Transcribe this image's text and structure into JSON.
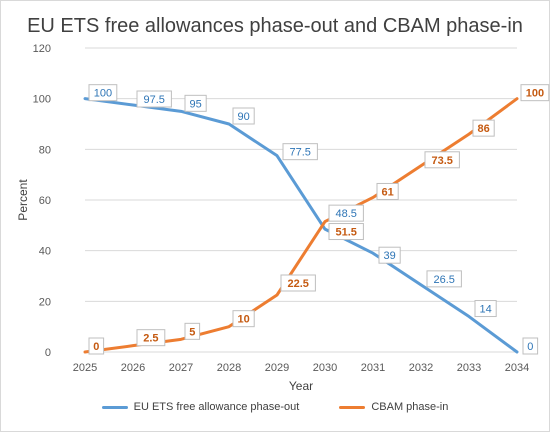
{
  "chart_data": {
    "type": "line",
    "title": "EU ETS free allowances phase-out and CBAM phase-in",
    "xlabel": "Year",
    "ylabel": "Percent",
    "x": [
      2025,
      2026,
      2027,
      2028,
      2029,
      2030,
      2031,
      2032,
      2033,
      2034
    ],
    "ylim": [
      0,
      120
    ],
    "yticks": [
      0,
      20,
      40,
      60,
      80,
      100,
      120
    ],
    "grid": true,
    "legend_position": "bottom",
    "series": [
      {
        "name": "EU ETS free allowance phase-out",
        "color": "#5B9BD5",
        "label_color": "#2E75B6",
        "values": [
          100,
          97.5,
          95,
          90,
          77.5,
          48.5,
          39,
          26.5,
          14,
          0
        ]
      },
      {
        "name": "CBAM phase-in",
        "color": "#ED7D31",
        "label_color": "#C55A11",
        "values": [
          0,
          2.5,
          5,
          10,
          22.5,
          51.5,
          61,
          73.5,
          86,
          100
        ]
      }
    ]
  }
}
